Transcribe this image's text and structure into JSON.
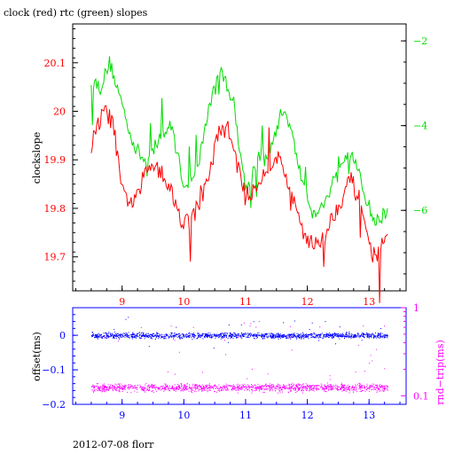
{
  "title": "clock (red) rtc (green) slopes",
  "footer": "2012-07-08 florr",
  "colors": {
    "clock": "#ff0000",
    "rtc": "#00dd00",
    "offset": "#0000ff",
    "roundtrip": "#ff00ff",
    "axis": "#000000"
  },
  "chart_data": [
    {
      "type": "line",
      "ylabel": "clockslope",
      "y2label": "",
      "xlim": [
        8.2,
        13.6
      ],
      "ylim": [
        19.63,
        20.18
      ],
      "y2lim": [
        -7.9,
        -1.6
      ],
      "x_ticks": [
        9,
        10,
        11,
        12,
        13
      ],
      "y_ticks": [
        19.7,
        19.8,
        19.9,
        20,
        20.1
      ],
      "y_tick_labels": [
        "19.7",
        "19.8",
        "19.9",
        "20",
        "20.1"
      ],
      "y2_ticks": [
        -2,
        -4,
        -6
      ],
      "y2_tick_labels": [
        "−2",
        "−4",
        "−6"
      ],
      "series": [
        {
          "axis": "y",
          "color": "#ff0000",
          "x": [
            8.5,
            8.7,
            8.85,
            9.0,
            9.2,
            9.4,
            9.55,
            9.75,
            9.95,
            10.1,
            10.35,
            10.55,
            10.7,
            10.85,
            11.0,
            11.25,
            11.5,
            11.65,
            11.8,
            12.0,
            12.2,
            12.4,
            12.55,
            12.7,
            12.9,
            13.0,
            13.1,
            13.2,
            13.3
          ],
          "y": [
            19.93,
            20.0,
            19.98,
            19.83,
            19.81,
            19.88,
            19.9,
            19.85,
            19.78,
            19.77,
            19.84,
            19.95,
            19.97,
            19.9,
            19.82,
            19.86,
            19.91,
            19.87,
            19.8,
            19.74,
            19.72,
            19.78,
            19.82,
            19.86,
            19.8,
            19.72,
            19.7,
            19.72,
            19.73
          ]
        },
        {
          "axis": "y2",
          "color": "#00dd00",
          "x": [
            8.5,
            8.65,
            8.8,
            9.0,
            9.2,
            9.4,
            9.6,
            9.8,
            10.0,
            10.2,
            10.4,
            10.6,
            10.8,
            11.0,
            11.2,
            11.4,
            11.6,
            11.7,
            11.9,
            12.1,
            12.3,
            12.5,
            12.7,
            12.9,
            13.1,
            13.3
          ],
          "y": [
            -2.9,
            -3.1,
            -2.5,
            -3.5,
            -4.5,
            -4.9,
            -4.3,
            -4.0,
            -5.4,
            -5.2,
            -3.6,
            -2.7,
            -3.4,
            -5.5,
            -4.8,
            -4.6,
            -3.6,
            -3.9,
            -5.2,
            -6.1,
            -5.8,
            -4.9,
            -4.5,
            -5.5,
            -6.3,
            -6.0
          ]
        }
      ]
    },
    {
      "type": "scatter",
      "ylabel": "offset(ms)",
      "y2label": "rnd−trip(ms)",
      "xlim": [
        8.2,
        13.6
      ],
      "ylim": [
        -0.2,
        0.08
      ],
      "y2_scale": "log",
      "y2lim": [
        0.08,
        1.0
      ],
      "x_ticks": [
        9,
        10,
        11,
        12,
        13
      ],
      "y_ticks": [
        0,
        -0.1,
        -0.2
      ],
      "y_tick_labels": [
        "0",
        "−0.1",
        "−0.2"
      ],
      "y2_ticks": [
        1,
        0.1
      ],
      "y2_tick_labels": [
        "1",
        "0.1"
      ],
      "series": [
        {
          "axis": "y",
          "color": "#0000ff",
          "x_range": [
            8.5,
            13.3
          ],
          "center": 0.0,
          "spread": 0.008
        },
        {
          "axis": "y2",
          "color": "#ff00ff",
          "x_range": [
            8.5,
            13.3
          ],
          "center": 0.125,
          "spread": 0.012
        }
      ]
    }
  ]
}
